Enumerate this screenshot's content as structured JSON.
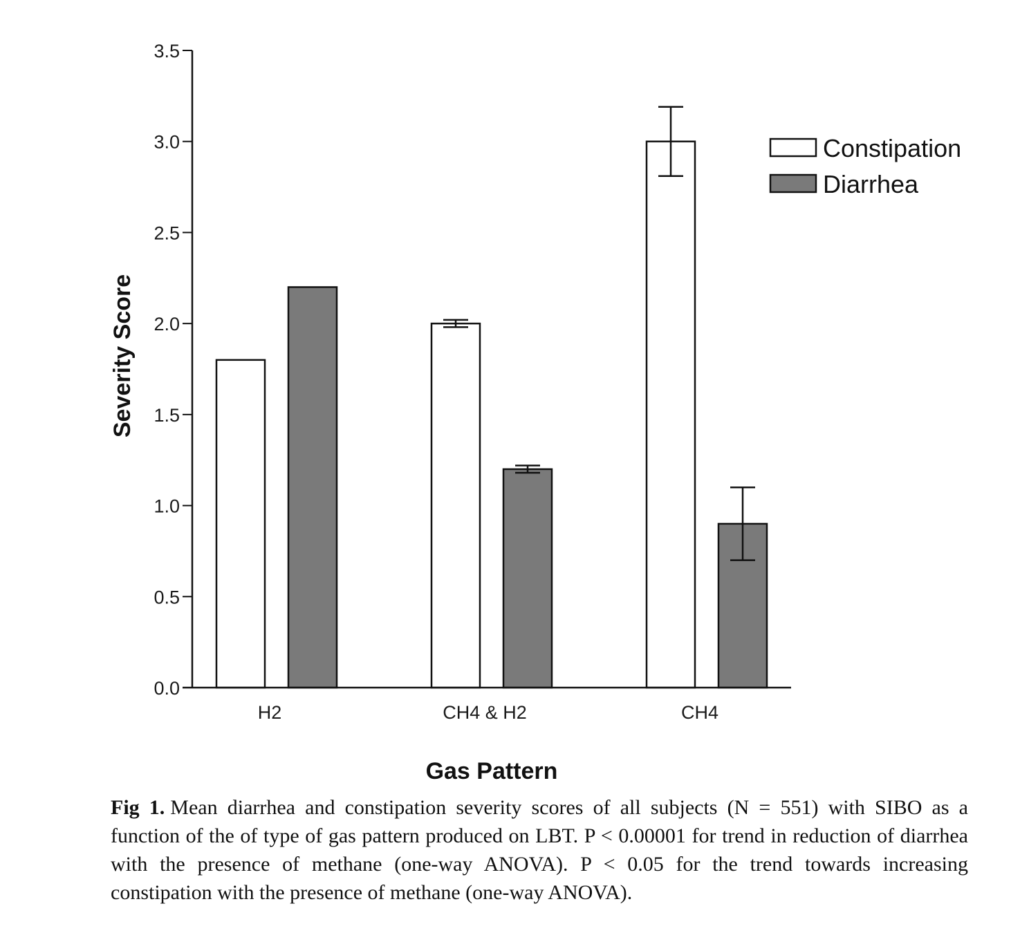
{
  "chart_data": {
    "type": "bar",
    "title": "",
    "xlabel": "Gas Pattern",
    "ylabel": "Severity Score",
    "ylim": [
      0,
      3.5
    ],
    "yticks": [
      "0.0",
      "0.5",
      "1.0",
      "1.5",
      "2.0",
      "2.5",
      "3.0",
      "3.5"
    ],
    "categories": [
      "H2",
      "CH4 & H2",
      "CH4"
    ],
    "series": [
      {
        "name": "Constipation",
        "color": "#ffffff",
        "values": [
          1.8,
          2.0,
          3.0
        ],
        "errors": [
          0.0,
          0.02,
          0.19
        ]
      },
      {
        "name": "Diarrhea",
        "color": "#7a7a7a",
        "values": [
          2.2,
          1.2,
          0.9
        ],
        "errors": [
          0.0,
          0.02,
          0.2
        ]
      }
    ],
    "legend_position": "top-right",
    "grid": false
  },
  "caption": {
    "label": "Fig 1.",
    "text": "Mean diarrhea and constipation severity scores of all subjects (N = 551) with SIBO as a function of the of type of gas pattern produced on LBT. P < 0.00001 for trend in reduction of diarrhea with the presence of methane (one-way ANOVA). P < 0.05 for the trend towards increasing constipation with the presence of methane (one-way ANOVA)."
  }
}
